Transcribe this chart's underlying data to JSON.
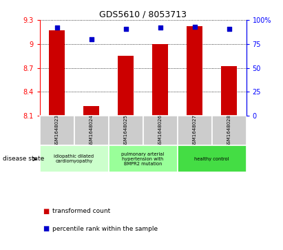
{
  "title": "GDS5610 / 8053713",
  "samples": [
    "GSM1648023",
    "GSM1648024",
    "GSM1648025",
    "GSM1648026",
    "GSM1648027",
    "GSM1648028"
  ],
  "transformed_count": [
    9.17,
    8.22,
    8.85,
    9.0,
    9.22,
    8.72
  ],
  "percentile_rank": [
    92,
    80,
    91,
    92,
    93,
    91
  ],
  "ylim_left": [
    8.1,
    9.3
  ],
  "ylim_right": [
    0,
    100
  ],
  "yticks_left": [
    8.1,
    8.4,
    8.7,
    9.0,
    9.3
  ],
  "yticks_right": [
    0,
    25,
    50,
    75,
    100
  ],
  "ytick_labels_left": [
    "8.1",
    "8.4",
    "8.7",
    "9",
    "9.3"
  ],
  "ytick_labels_right": [
    "0",
    "25",
    "50",
    "75",
    "100%"
  ],
  "bar_color": "#cc0000",
  "dot_color": "#0000cc",
  "disease_groups": [
    {
      "label": "idiopathic dilated\ncardiomyopathy",
      "indices": [
        0,
        1
      ],
      "color": "#ccffcc"
    },
    {
      "label": "pulmonary arterial\nhypertension with\nBMPR2 mutation",
      "indices": [
        2,
        3
      ],
      "color": "#99ff99"
    },
    {
      "label": "healthy control",
      "indices": [
        4,
        5
      ],
      "color": "#44dd44"
    }
  ],
  "disease_state_label": "disease state",
  "legend_bar_label": "transformed count",
  "legend_dot_label": "percentile rank within the sample",
  "sample_bg_color": "#cccccc",
  "grid_color": "#000000"
}
